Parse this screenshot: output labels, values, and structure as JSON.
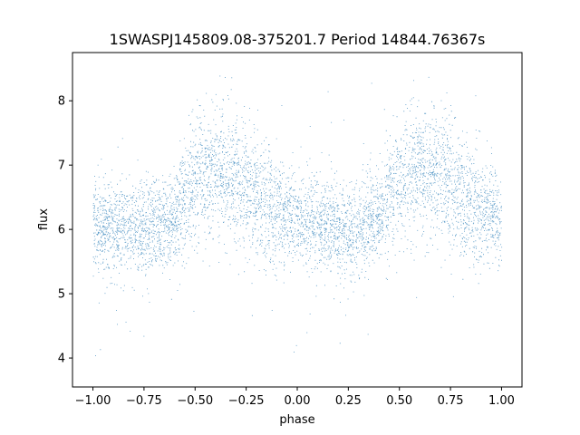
{
  "chart_data": {
    "type": "scatter",
    "title": "1SWASPJ145809.08-375201.7 Period 14844.76367s",
    "xlabel": "phase",
    "ylabel": "flux",
    "xlim": [
      -1.1,
      1.1
    ],
    "ylim": [
      3.55,
      8.75
    ],
    "x_ticks": [
      -1.0,
      -0.75,
      -0.5,
      -0.25,
      0.0,
      0.25,
      0.5,
      0.75,
      1.0
    ],
    "x_tick_labels": [
      "−1.00",
      "−0.75",
      "−0.50",
      "−0.25",
      "0.00",
      "0.25",
      "0.50",
      "0.75",
      "1.00"
    ],
    "y_ticks": [
      4,
      5,
      6,
      7,
      8
    ],
    "y_tick_labels": [
      "4",
      "5",
      "6",
      "7",
      "8"
    ],
    "grid": false,
    "marker_color": "#1f77b4",
    "series": [
      {
        "x_range": [
          -1.0,
          1.0
        ],
        "profile": [
          {
            "x": -1.0,
            "y": 6.1
          },
          {
            "x": -0.9,
            "y": 6.05
          },
          {
            "x": -0.8,
            "y": 6.0
          },
          {
            "x": -0.7,
            "y": 6.05
          },
          {
            "x": -0.6,
            "y": 6.2
          },
          {
            "x": -0.5,
            "y": 6.7
          },
          {
            "x": -0.4,
            "y": 6.95
          },
          {
            "x": -0.3,
            "y": 6.8
          },
          {
            "x": -0.2,
            "y": 6.5
          },
          {
            "x": -0.1,
            "y": 6.3
          },
          {
            "x": 0.0,
            "y": 6.15
          },
          {
            "x": 0.1,
            "y": 6.05
          },
          {
            "x": 0.2,
            "y": 6.0
          },
          {
            "x": 0.3,
            "y": 6.05
          },
          {
            "x": 0.4,
            "y": 6.2
          },
          {
            "x": 0.5,
            "y": 6.7
          },
          {
            "x": 0.6,
            "y": 6.95
          },
          {
            "x": 0.7,
            "y": 6.8
          },
          {
            "x": 0.8,
            "y": 6.5
          },
          {
            "x": 0.9,
            "y": 6.3
          },
          {
            "x": 1.0,
            "y": 6.15
          }
        ],
        "spread": 0.35,
        "y_min_observed": 3.85,
        "y_max_observed": 8.55
      }
    ]
  }
}
